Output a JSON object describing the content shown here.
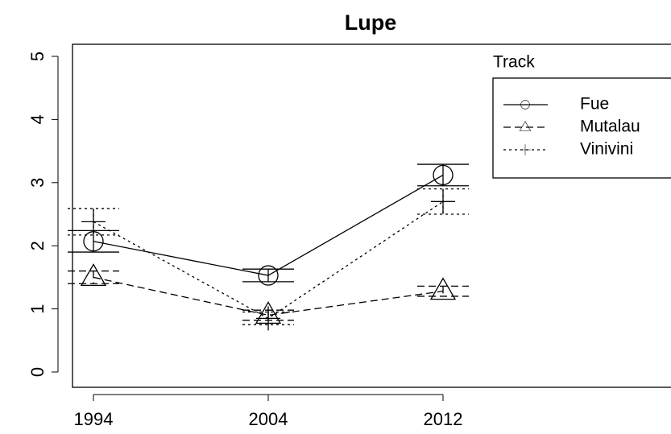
{
  "chart_data": {
    "type": "line",
    "title": "Lupe",
    "categories": [
      "1994",
      "2004",
      "2012"
    ],
    "series": [
      {
        "name": "Fue",
        "color": "#000000",
        "dash": "solid",
        "marker": "circle",
        "values": [
          2.07,
          1.53,
          3.12
        ],
        "error": [
          0.17,
          0.1,
          0.17
        ]
      },
      {
        "name": "Mutalau",
        "color": "#000000",
        "dash": "dashed",
        "marker": "triangle",
        "values": [
          1.5,
          0.9,
          1.28
        ],
        "error": [
          0.1,
          0.08,
          0.08
        ]
      },
      {
        "name": "Vinivini",
        "color": "#000000",
        "dash": "dotted",
        "marker": "plus",
        "values": [
          2.38,
          0.85,
          2.7
        ],
        "error": [
          0.21,
          0.1,
          0.2
        ]
      }
    ],
    "ylim": [
      0,
      5
    ],
    "yticks": [
      0,
      1,
      2,
      3,
      4,
      5
    ],
    "legend_title": "Track",
    "legend_position": "upper right"
  }
}
